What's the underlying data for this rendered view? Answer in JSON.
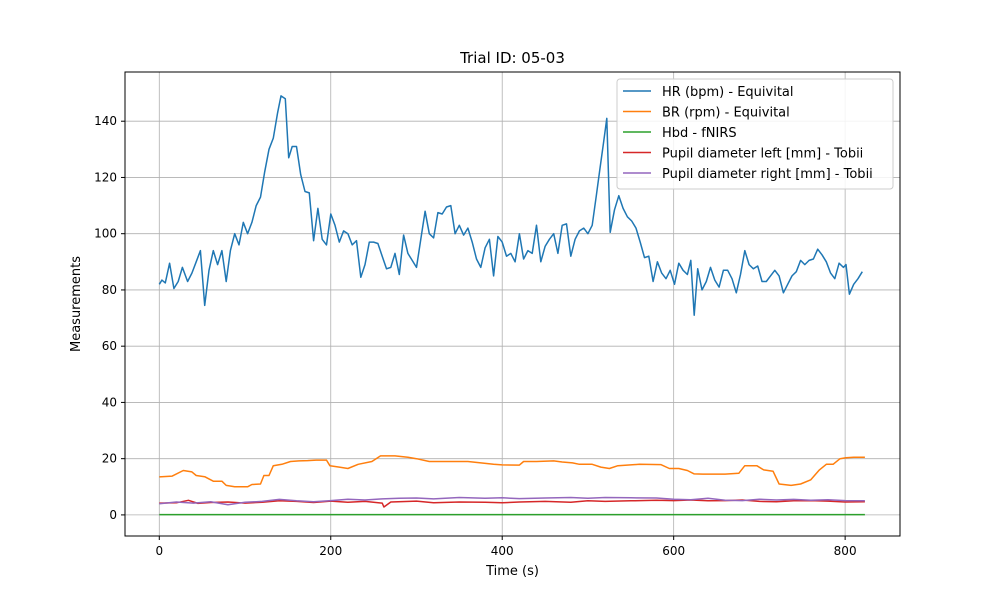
{
  "chart_data": {
    "type": "line",
    "title": "Trial ID: 05-03",
    "xlabel": "Time (s)",
    "ylabel": "Measurements",
    "xlim": [
      -40,
      864
    ],
    "ylim": [
      -7.5,
      157.5
    ],
    "xticks": [
      0,
      200,
      400,
      600,
      800
    ],
    "yticks": [
      0,
      20,
      40,
      60,
      80,
      100,
      120,
      140
    ],
    "grid": true,
    "legend_position": "top-right",
    "series": [
      {
        "name": "HR (bpm) - Equivital",
        "color": "#1f77b4",
        "points": [
          [
            0,
            82
          ],
          [
            3,
            83.5
          ],
          [
            7,
            82.5
          ],
          [
            12,
            89.5
          ],
          [
            17,
            80.5
          ],
          [
            22,
            83
          ],
          [
            27,
            88
          ],
          [
            33,
            83
          ],
          [
            38,
            86
          ],
          [
            43,
            90
          ],
          [
            48,
            94
          ],
          [
            53,
            74.5
          ],
          [
            58,
            87
          ],
          [
            63,
            94
          ],
          [
            68,
            89
          ],
          [
            73,
            94
          ],
          [
            78,
            83
          ],
          [
            83,
            94
          ],
          [
            88,
            100
          ],
          [
            93,
            96
          ],
          [
            98,
            104
          ],
          [
            103,
            100
          ],
          [
            108,
            104
          ],
          [
            113,
            110
          ],
          [
            118,
            113
          ],
          [
            123,
            122
          ],
          [
            128,
            130
          ],
          [
            133,
            134
          ],
          [
            138,
            143
          ],
          [
            142,
            149
          ],
          [
            147,
            148
          ],
          [
            151,
            127
          ],
          [
            155,
            131
          ],
          [
            160,
            131
          ],
          [
            165,
            121
          ],
          [
            170,
            115
          ],
          [
            175,
            114.5
          ],
          [
            180,
            97.5
          ],
          [
            185,
            109
          ],
          [
            190,
            98
          ],
          [
            195,
            96
          ],
          [
            200,
            107
          ],
          [
            205,
            103
          ],
          [
            210,
            97
          ],
          [
            215,
            101
          ],
          [
            220,
            100
          ],
          [
            225,
            96
          ],
          [
            230,
            97.5
          ],
          [
            235,
            84.5
          ],
          [
            240,
            89
          ],
          [
            245,
            97
          ],
          [
            250,
            97
          ],
          [
            255,
            96.5
          ],
          [
            260,
            92
          ],
          [
            265,
            87.5
          ],
          [
            270,
            88
          ],
          [
            275,
            93
          ],
          [
            280,
            85.5
          ],
          [
            285,
            99.5
          ],
          [
            290,
            93
          ],
          [
            295,
            90.5
          ],
          [
            300,
            88
          ],
          [
            305,
            98
          ],
          [
            310,
            108
          ],
          [
            315,
            100
          ],
          [
            320,
            98.5
          ],
          [
            325,
            107.5
          ],
          [
            330,
            107
          ],
          [
            335,
            109.5
          ],
          [
            340,
            110
          ],
          [
            345,
            100
          ],
          [
            350,
            103
          ],
          [
            355,
            99.5
          ],
          [
            360,
            102
          ],
          [
            365,
            97
          ],
          [
            370,
            91
          ],
          [
            375,
            88
          ],
          [
            380,
            95
          ],
          [
            385,
            98
          ],
          [
            390,
            85
          ],
          [
            395,
            99
          ],
          [
            400,
            97
          ],
          [
            405,
            92
          ],
          [
            410,
            93
          ],
          [
            415,
            90
          ],
          [
            420,
            100
          ],
          [
            425,
            91
          ],
          [
            430,
            94
          ],
          [
            435,
            93
          ],
          [
            440,
            103
          ],
          [
            445,
            90
          ],
          [
            450,
            95.5
          ],
          [
            455,
            98
          ],
          [
            460,
            100
          ],
          [
            465,
            93
          ],
          [
            470,
            103
          ],
          [
            475,
            103.5
          ],
          [
            480,
            92
          ],
          [
            485,
            98
          ],
          [
            490,
            101
          ],
          [
            495,
            102
          ],
          [
            500,
            100
          ],
          [
            505,
            103
          ],
          [
            510,
            114
          ],
          [
            514,
            123
          ],
          [
            518,
            132
          ],
          [
            522,
            141
          ],
          [
            526,
            100.5
          ],
          [
            531,
            108.5
          ],
          [
            536,
            113.5
          ],
          [
            541,
            109
          ],
          [
            546,
            106
          ],
          [
            551,
            104.5
          ],
          [
            556,
            102
          ],
          [
            561,
            97
          ],
          [
            566,
            91.5
          ],
          [
            571,
            92
          ],
          [
            576,
            83
          ],
          [
            581,
            90
          ],
          [
            586,
            86
          ],
          [
            591,
            84
          ],
          [
            596,
            87
          ],
          [
            601,
            82
          ],
          [
            606,
            89.5
          ],
          [
            611,
            87
          ],
          [
            616,
            85.5
          ],
          [
            620,
            90.5
          ],
          [
            624,
            71
          ],
          [
            628,
            87.5
          ],
          [
            633,
            80
          ],
          [
            638,
            83
          ],
          [
            643,
            88
          ],
          [
            648,
            83.5
          ],
          [
            653,
            81
          ],
          [
            658,
            87
          ],
          [
            663,
            87
          ],
          [
            668,
            84
          ],
          [
            673,
            79
          ],
          [
            678,
            85.5
          ],
          [
            683,
            94
          ],
          [
            688,
            89
          ],
          [
            693,
            87.5
          ],
          [
            698,
            88.5
          ],
          [
            703,
            83
          ],
          [
            708,
            83
          ],
          [
            713,
            85
          ],
          [
            718,
            87
          ],
          [
            723,
            85
          ],
          [
            728,
            79
          ],
          [
            733,
            82
          ],
          [
            738,
            85
          ],
          [
            743,
            86.5
          ],
          [
            748,
            90.5
          ],
          [
            753,
            89
          ],
          [
            758,
            90.5
          ],
          [
            763,
            91
          ],
          [
            768,
            94.5
          ],
          [
            773,
            92.5
          ],
          [
            778,
            90
          ],
          [
            783,
            86
          ],
          [
            788,
            84
          ],
          [
            793,
            89.5
          ],
          [
            798,
            88
          ],
          [
            801,
            89
          ],
          [
            805,
            78.5
          ],
          [
            810,
            82
          ],
          [
            815,
            84
          ],
          [
            820,
            86.5
          ]
        ]
      },
      {
        "name": "BR (rpm) - Equivital",
        "color": "#ff7f0e",
        "points": [
          [
            0,
            13.5
          ],
          [
            15,
            13.8
          ],
          [
            28,
            15.8
          ],
          [
            38,
            15.3
          ],
          [
            43,
            14
          ],
          [
            53,
            13.6
          ],
          [
            63,
            12
          ],
          [
            73,
            12
          ],
          [
            78,
            10.5
          ],
          [
            88,
            10
          ],
          [
            103,
            10
          ],
          [
            108,
            10.8
          ],
          [
            118,
            11
          ],
          [
            122,
            14
          ],
          [
            128,
            14
          ],
          [
            133,
            17.5
          ],
          [
            143,
            18
          ],
          [
            153,
            19
          ],
          [
            163,
            19.2
          ],
          [
            173,
            19.3
          ],
          [
            183,
            19.5
          ],
          [
            195,
            19.5
          ],
          [
            199,
            17.5
          ],
          [
            210,
            17
          ],
          [
            220,
            16.5
          ],
          [
            232,
            18
          ],
          [
            248,
            19
          ],
          [
            258,
            21
          ],
          [
            275,
            21
          ],
          [
            290,
            20.5
          ],
          [
            300,
            20
          ],
          [
            315,
            19
          ],
          [
            328,
            19
          ],
          [
            345,
            19
          ],
          [
            360,
            19
          ],
          [
            375,
            18.5
          ],
          [
            390,
            18
          ],
          [
            400,
            17.8
          ],
          [
            420,
            17.7
          ],
          [
            425,
            19
          ],
          [
            440,
            19
          ],
          [
            460,
            19.2
          ],
          [
            470,
            18.8
          ],
          [
            482,
            18.5
          ],
          [
            490,
            18
          ],
          [
            505,
            18
          ],
          [
            515,
            17
          ],
          [
            525,
            16.5
          ],
          [
            535,
            17.5
          ],
          [
            560,
            18
          ],
          [
            585,
            17.9
          ],
          [
            595,
            16.5
          ],
          [
            606,
            16.5
          ],
          [
            616,
            15.8
          ],
          [
            624,
            14.6
          ],
          [
            634,
            14.5
          ],
          [
            660,
            14.5
          ],
          [
            676,
            14.8
          ],
          [
            683,
            17.5
          ],
          [
            697,
            17.5
          ],
          [
            705,
            16
          ],
          [
            716,
            15.5
          ],
          [
            723,
            11
          ],
          [
            737,
            10.5
          ],
          [
            748,
            11
          ],
          [
            760,
            12.5
          ],
          [
            770,
            16
          ],
          [
            778,
            18
          ],
          [
            786,
            18
          ],
          [
            794,
            20
          ],
          [
            801,
            20.3
          ],
          [
            810,
            20.5
          ],
          [
            823,
            20.5
          ]
        ]
      },
      {
        "name": "Hbd - fNIRS",
        "color": "#2ca02c",
        "points": [
          [
            0,
            0.1
          ],
          [
            823,
            0.1
          ]
        ]
      },
      {
        "name": "Pupil diameter left [mm] - Tobii",
        "color": "#d62728",
        "points": [
          [
            0,
            4.2
          ],
          [
            20,
            4.3
          ],
          [
            34,
            5.2
          ],
          [
            45,
            4.1
          ],
          [
            60,
            4.4
          ],
          [
            80,
            4.6
          ],
          [
            100,
            4.2
          ],
          [
            120,
            4.5
          ],
          [
            140,
            5.0
          ],
          [
            160,
            4.8
          ],
          [
            180,
            4.4
          ],
          [
            200,
            4.9
          ],
          [
            220,
            4.5
          ],
          [
            240,
            4.8
          ],
          [
            260,
            4.2
          ],
          [
            262,
            2.8
          ],
          [
            270,
            4.6
          ],
          [
            300,
            4.9
          ],
          [
            320,
            4.3
          ],
          [
            350,
            4.6
          ],
          [
            380,
            4.5
          ],
          [
            400,
            4.3
          ],
          [
            420,
            4.6
          ],
          [
            450,
            4.8
          ],
          [
            480,
            4.5
          ],
          [
            500,
            5.0
          ],
          [
            520,
            4.8
          ],
          [
            550,
            5.0
          ],
          [
            580,
            5.2
          ],
          [
            600,
            5.1
          ],
          [
            620,
            5.3
          ],
          [
            640,
            5.0
          ],
          [
            660,
            5.1
          ],
          [
            680,
            5.3
          ],
          [
            700,
            4.8
          ],
          [
            720,
            4.7
          ],
          [
            740,
            5.0
          ],
          [
            760,
            5.1
          ],
          [
            780,
            4.9
          ],
          [
            800,
            4.6
          ],
          [
            823,
            4.7
          ]
        ]
      },
      {
        "name": "Pupil diameter right [mm] - Tobii",
        "color": "#9467bd",
        "points": [
          [
            0,
            4.0
          ],
          [
            20,
            4.6
          ],
          [
            40,
            4.2
          ],
          [
            60,
            4.7
          ],
          [
            80,
            3.6
          ],
          [
            100,
            4.5
          ],
          [
            120,
            4.8
          ],
          [
            140,
            5.5
          ],
          [
            160,
            5.0
          ],
          [
            180,
            4.7
          ],
          [
            200,
            5.1
          ],
          [
            220,
            5.6
          ],
          [
            240,
            5.3
          ],
          [
            260,
            5.7
          ],
          [
            280,
            5.9
          ],
          [
            300,
            6.0
          ],
          [
            320,
            5.7
          ],
          [
            350,
            6.2
          ],
          [
            380,
            5.9
          ],
          [
            400,
            6.1
          ],
          [
            420,
            5.8
          ],
          [
            450,
            6.0
          ],
          [
            480,
            6.2
          ],
          [
            500,
            5.9
          ],
          [
            520,
            6.2
          ],
          [
            550,
            6.1
          ],
          [
            580,
            6.0
          ],
          [
            600,
            5.6
          ],
          [
            620,
            5.4
          ],
          [
            640,
            5.9
          ],
          [
            660,
            5.2
          ],
          [
            680,
            5.1
          ],
          [
            700,
            5.6
          ],
          [
            720,
            5.3
          ],
          [
            740,
            5.5
          ],
          [
            760,
            5.2
          ],
          [
            780,
            5.4
          ],
          [
            800,
            5.1
          ],
          [
            823,
            5.0
          ]
        ]
      }
    ]
  }
}
